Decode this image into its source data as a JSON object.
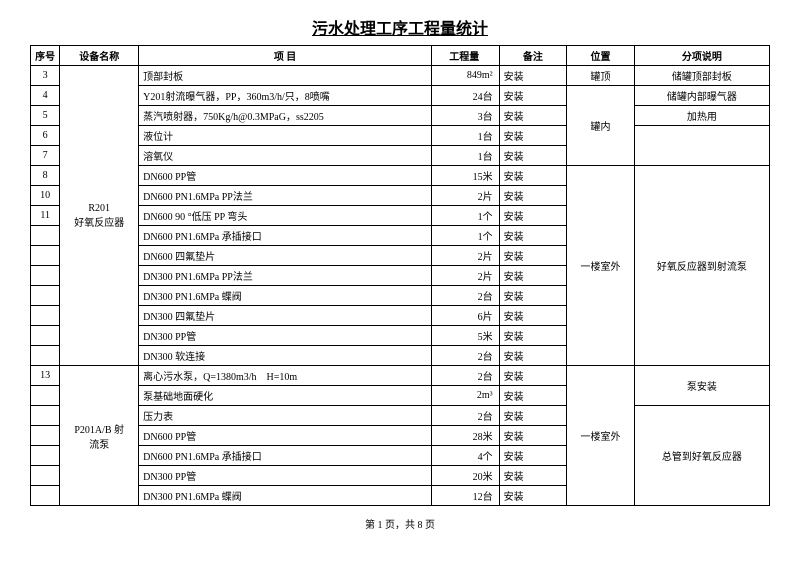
{
  "title": "污水处理工序工程量统计",
  "footer": "第 1 页，共 8 页",
  "headers": {
    "seq": "序号",
    "name": "设备名称",
    "item": "项 目",
    "qty": "工程量",
    "note": "备注",
    "loc": "位置",
    "desc": "分项说明"
  },
  "group1_name_line1": "R201",
  "group1_name_line2": "好氧反应器",
  "group1_loc1": "罐顶",
  "group1_loc2": "罐内",
  "group1_loc3": "一楼室外",
  "group1_desc1": "储罐顶部封板",
  "group1_desc2": "储罐内部曝气器",
  "group1_desc3": "加热用",
  "group1_desc4": "好氧反应器到射流泵",
  "rows_g1": [
    {
      "seq": "3",
      "item": "顶部封板",
      "qty": "849m²",
      "note": "安装"
    },
    {
      "seq": "4",
      "item": "Y201射流曝气器，PP，360m3/h/只，8喷嘴",
      "qty": "24台",
      "note": "安装"
    },
    {
      "seq": "5",
      "item": "蒸汽喷射器，750Kg/h@0.3MPaG，ss2205",
      "qty": "3台",
      "note": "安装"
    },
    {
      "seq": "6",
      "item": "液位计",
      "qty": "1台",
      "note": "安装"
    },
    {
      "seq": "7",
      "item": "溶氧仪",
      "qty": "1台",
      "note": "安装"
    },
    {
      "seq": "8",
      "item": "DN600 PP管",
      "qty": "15米",
      "note": "安装"
    },
    {
      "seq": "10",
      "item": "DN600 PN1.6MPa PP法兰",
      "qty": "2片",
      "note": "安装"
    },
    {
      "seq": "11",
      "item": "DN600 90 °低压 PP 弯头",
      "qty": "1个",
      "note": "安装"
    },
    {
      "seq": "",
      "item": "DN600 PN1.6MPa 承插接口",
      "qty": "1个",
      "note": "安装"
    },
    {
      "seq": "",
      "item": "DN600 四氟垫片",
      "qty": "2片",
      "note": "安装"
    },
    {
      "seq": "",
      "item": "DN300 PN1.6MPa PP法兰",
      "qty": "2片",
      "note": "安装"
    },
    {
      "seq": "",
      "item": "DN300 PN1.6MPa 蝶阀",
      "qty": "2台",
      "note": "安装"
    },
    {
      "seq": "",
      "item": "DN300 四氟垫片",
      "qty": "6片",
      "note": "安装"
    },
    {
      "seq": "",
      "item": "DN300 PP管",
      "qty": "5米",
      "note": "安装"
    },
    {
      "seq": "",
      "item": "DN300 软连接",
      "qty": "2台",
      "note": "安装"
    }
  ],
  "group2_name_line1": "P201A/B 射",
  "group2_name_line2": "流泵",
  "group2_loc": "一楼室外",
  "group2_desc1": "泵安装",
  "group2_desc2": "总管到好氧反应器",
  "rows_g2": [
    {
      "seq": "13",
      "item": "离心污水泵，Q=1380m3/h　H=10m",
      "qty": "2台",
      "note": "安装"
    },
    {
      "seq": "",
      "item": "泵基础地面硬化",
      "qty": "2m³",
      "note": "安装"
    },
    {
      "seq": "",
      "item": "压力表",
      "qty": "2台",
      "note": "安装"
    },
    {
      "seq": "",
      "item": "DN600 PP管",
      "qty": "28米",
      "note": "安装"
    },
    {
      "seq": "",
      "item": "DN600 PN1.6MPa 承插接口",
      "qty": "4个",
      "note": "安装"
    },
    {
      "seq": "",
      "item": "DN300 PP管",
      "qty": "20米",
      "note": "安装"
    },
    {
      "seq": "",
      "item": "DN300 PN1.6MPa 蝶阀",
      "qty": "12台",
      "note": "安装"
    }
  ]
}
